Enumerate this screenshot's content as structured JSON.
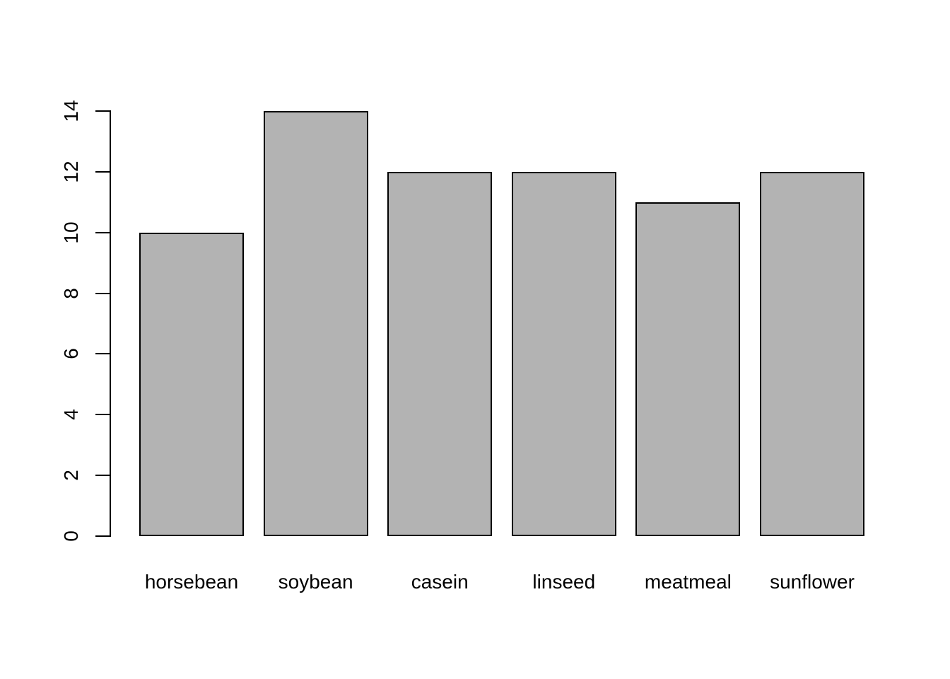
{
  "chart_data": {
    "type": "bar",
    "title": "",
    "xlabel": "",
    "ylabel": "",
    "categories": [
      "horsebean",
      "soybean",
      "casein",
      "linseed",
      "meatmeal",
      "sunflower"
    ],
    "values": [
      10,
      14,
      12,
      12,
      11,
      12
    ],
    "ylim": [
      0,
      14
    ],
    "yticks": [
      0,
      2,
      4,
      6,
      8,
      10,
      12,
      14
    ],
    "grid": false,
    "legend": "none",
    "bar_fill": "#b3b3b3",
    "bar_border": "#000000",
    "axis_color": "#000000",
    "text_color": "#000000",
    "background": "#ffffff"
  }
}
